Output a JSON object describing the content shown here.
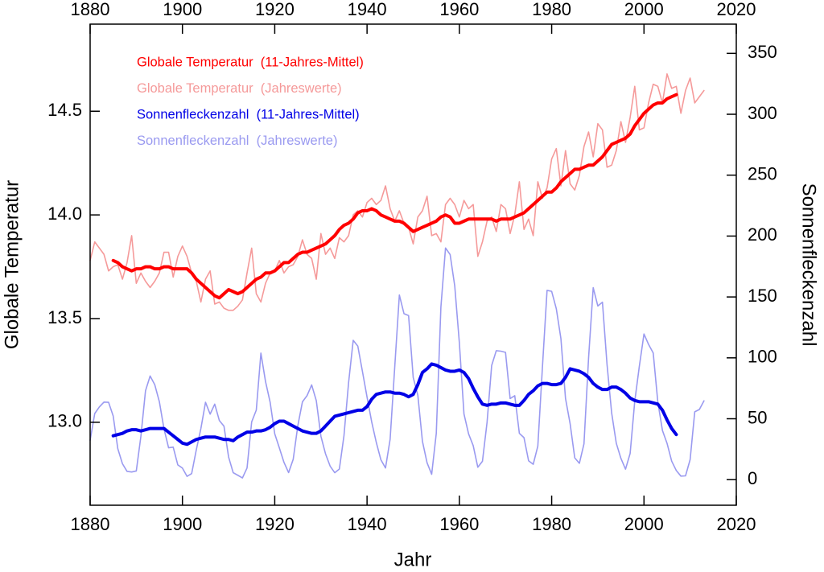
{
  "chart_data": {
    "type": "line",
    "xlabel": "Jahr",
    "ylabel": "Globale Temperatur",
    "y2label": "Sonnenfleckenzahl",
    "xlim": [
      1880,
      2020
    ],
    "xticks": [
      1880,
      1900,
      1920,
      1940,
      1960,
      1980,
      2000,
      2020
    ],
    "ylim": [
      12.6,
      14.92
    ],
    "yticks": [
      {
        "value": 13,
        "label": "13.0"
      },
      13.5,
      {
        "value": 14,
        "label": "14.0"
      },
      14.5
    ],
    "y2lim": [
      -21,
      374
    ],
    "y2ticks": [
      0,
      50,
      100,
      150,
      200,
      250,
      300,
      350
    ],
    "legend": "upper left",
    "x": [
      1880,
      1881,
      1882,
      1883,
      1884,
      1885,
      1886,
      1887,
      1888,
      1889,
      1890,
      1891,
      1892,
      1893,
      1894,
      1895,
      1896,
      1897,
      1898,
      1899,
      1900,
      1901,
      1902,
      1903,
      1904,
      1905,
      1906,
      1907,
      1908,
      1909,
      1910,
      1911,
      1912,
      1913,
      1914,
      1915,
      1916,
      1917,
      1918,
      1919,
      1920,
      1921,
      1922,
      1923,
      1924,
      1925,
      1926,
      1927,
      1928,
      1929,
      1930,
      1931,
      1932,
      1933,
      1934,
      1935,
      1936,
      1937,
      1938,
      1939,
      1940,
      1941,
      1942,
      1943,
      1944,
      1945,
      1946,
      1947,
      1948,
      1949,
      1950,
      1951,
      1952,
      1953,
      1954,
      1955,
      1956,
      1957,
      1958,
      1959,
      1960,
      1961,
      1962,
      1963,
      1964,
      1965,
      1966,
      1967,
      1968,
      1969,
      1970,
      1971,
      1972,
      1973,
      1974,
      1975,
      1976,
      1977,
      1978,
      1979,
      1980,
      1981,
      1982,
      1983,
      1984,
      1985,
      1986,
      1987,
      1988,
      1989,
      1990,
      1991,
      1992,
      1993,
      1994,
      1995,
      1996,
      1997,
      1998,
      1999,
      2000,
      2001,
      2002,
      2003,
      2004,
      2005,
      2006,
      2007,
      2008,
      2009,
      2010,
      2011,
      2012,
      2013
    ],
    "series": [
      {
        "name": "Globale Temperatur  (Jahreswerte)",
        "color": "#f59a9a",
        "axis": "y",
        "width": 1.6,
        "values": [
          13.78,
          13.87,
          13.84,
          13.81,
          13.73,
          13.75,
          13.76,
          13.69,
          13.77,
          13.9,
          13.67,
          13.72,
          13.68,
          13.65,
          13.68,
          13.72,
          13.82,
          13.82,
          13.7,
          13.8,
          13.85,
          13.8,
          13.72,
          13.68,
          13.58,
          13.69,
          13.73,
          13.57,
          13.58,
          13.55,
          13.54,
          13.54,
          13.56,
          13.59,
          13.72,
          13.84,
          13.62,
          13.58,
          13.67,
          13.72,
          13.73,
          13.78,
          13.72,
          13.75,
          13.76,
          13.8,
          13.88,
          13.81,
          13.79,
          13.69,
          13.91,
          13.81,
          13.84,
          13.79,
          13.89,
          13.87,
          13.9,
          14.0,
          14.02,
          13.99,
          14.06,
          14.08,
          14.05,
          14.07,
          14.14,
          14.03,
          13.97,
          14.02,
          13.96,
          13.94,
          13.86,
          13.99,
          14.02,
          14.09,
          13.9,
          13.91,
          13.87,
          14.05,
          14.08,
          14.05,
          13.99,
          14.07,
          14.03,
          14.05,
          13.8,
          13.87,
          13.97,
          13.99,
          13.92,
          14.05,
          14.03,
          13.91,
          14.0,
          14.16,
          13.93,
          13.98,
          13.9,
          14.16,
          14.08,
          14.13,
          14.27,
          14.32,
          14.14,
          14.31,
          14.15,
          14.12,
          14.19,
          14.33,
          14.4,
          14.28,
          14.44,
          14.41,
          14.23,
          14.24,
          14.31,
          14.45,
          14.35,
          14.47,
          14.62,
          14.41,
          14.42,
          14.54,
          14.63,
          14.62,
          14.54,
          14.68,
          14.61,
          14.62,
          14.49,
          14.6,
          14.66,
          14.54,
          14.57,
          14.6
        ]
      },
      {
        "name": "Sonnenfleckenzahl  (Jahreswerte)",
        "color": "#9a9af0",
        "axis": "y2",
        "width": 1.6,
        "values": [
          32.3,
          54.3,
          59.7,
          63.7,
          63.5,
          52.2,
          25.4,
          13.1,
          6.8,
          6.3,
          7.1,
          35.6,
          73.0,
          85.1,
          78.0,
          64.0,
          41.8,
          26.2,
          26.7,
          12.1,
          9.5,
          2.7,
          5.0,
          24.4,
          42.0,
          63.5,
          53.8,
          62.0,
          48.5,
          43.9,
          18.6,
          5.7,
          3.6,
          1.4,
          9.6,
          47.4,
          57.1,
          103.9,
          80.6,
          63.6,
          37.6,
          26.1,
          14.2,
          5.8,
          16.7,
          44.3,
          63.9,
          69.0,
          77.8,
          64.9,
          35.7,
          21.2,
          11.1,
          5.7,
          8.7,
          36.1,
          79.7,
          114.4,
          109.6,
          88.8,
          67.8,
          47.5,
          30.6,
          16.3,
          9.6,
          33.2,
          92.6,
          151.6,
          136.3,
          134.7,
          83.9,
          69.4,
          31.5,
          13.9,
          4.4,
          38.0,
          141.7,
          190.2,
          184.8,
          159.0,
          112.3,
          53.9,
          37.6,
          27.9,
          10.2,
          15.1,
          47.0,
          93.8,
          105.9,
          105.5,
          104.5,
          66.6,
          68.9,
          38.0,
          34.5,
          15.5,
          12.6,
          27.5,
          92.5,
          155.4,
          154.6,
          140.4,
          115.9,
          66.6,
          45.9,
          17.9,
          13.4,
          29.4,
          100.2,
          157.6,
          142.6,
          145.7,
          94.3,
          54.6,
          29.9,
          17.5,
          8.6,
          21.5,
          64.3,
          93.3,
          119.6,
          111.0,
          104.0,
          63.7,
          40.4,
          29.8,
          15.2,
          7.5,
          2.9,
          3.1,
          16.5,
          55.7,
          57.6,
          64.7
        ]
      },
      {
        "name": "Globale Temperatur  (11-Jahres-Mittel)",
        "color": "#ff0000",
        "axis": "y",
        "width": 4,
        "values": [
          null,
          null,
          null,
          null,
          null,
          13.78,
          13.77,
          13.75,
          13.74,
          13.73,
          13.74,
          13.74,
          13.75,
          13.75,
          13.74,
          13.74,
          13.75,
          13.75,
          13.74,
          13.74,
          13.74,
          13.74,
          13.72,
          13.69,
          13.67,
          13.65,
          13.63,
          13.61,
          13.6,
          13.62,
          13.64,
          13.63,
          13.62,
          13.63,
          13.65,
          13.67,
          13.69,
          13.7,
          13.72,
          13.72,
          13.73,
          13.75,
          13.77,
          13.77,
          13.79,
          13.81,
          13.82,
          13.82,
          13.83,
          13.84,
          13.85,
          13.86,
          13.88,
          13.9,
          13.93,
          13.95,
          13.96,
          13.98,
          14.01,
          14.02,
          14.02,
          14.03,
          14.02,
          14.0,
          13.99,
          13.98,
          13.97,
          13.97,
          13.96,
          13.94,
          13.92,
          13.93,
          13.94,
          13.95,
          13.96,
          13.97,
          13.99,
          14.0,
          13.99,
          13.96,
          13.96,
          13.97,
          13.98,
          13.98,
          13.98,
          13.98,
          13.98,
          13.98,
          13.97,
          13.98,
          13.98,
          13.98,
          13.99,
          14.0,
          14.01,
          14.03,
          14.05,
          14.07,
          14.09,
          14.11,
          14.11,
          14.13,
          14.16,
          14.18,
          14.2,
          14.22,
          14.22,
          14.23,
          14.24,
          14.24,
          14.26,
          14.28,
          14.31,
          14.34,
          14.35,
          14.36,
          14.37,
          14.39,
          14.43,
          14.46,
          14.49,
          14.51,
          14.53,
          14.54,
          14.54,
          14.56,
          14.57,
          14.58,
          null,
          null,
          null,
          null,
          null,
          null
        ]
      },
      {
        "name": "Sonnenfleckenzahl  (11-Jahres-Mittel)",
        "color": "#0000e6",
        "axis": "y2",
        "width": 4,
        "values": [
          null,
          null,
          null,
          null,
          null,
          36,
          37,
          38,
          40,
          41,
          41,
          40,
          41,
          42,
          42,
          42,
          42,
          39,
          36,
          33,
          30,
          29,
          31,
          33,
          34,
          35,
          35,
          35,
          34,
          33,
          33,
          32,
          35,
          37,
          39,
          39,
          40,
          40,
          41,
          43,
          46,
          48,
          48,
          46,
          44,
          42,
          40,
          39,
          38,
          38,
          40,
          44,
          48,
          52,
          53,
          54,
          55,
          56,
          57,
          57,
          60,
          66,
          70,
          71,
          72,
          72,
          71,
          71,
          70,
          68,
          70,
          78,
          88,
          91,
          95,
          94,
          92,
          90,
          89,
          89,
          90,
          88,
          83,
          75,
          68,
          62,
          61,
          62,
          62,
          63,
          63,
          62,
          61,
          61,
          65,
          70,
          73,
          77,
          79,
          79,
          78,
          78,
          79,
          84,
          91,
          90,
          89,
          87,
          84,
          79,
          76,
          74,
          74,
          76,
          76,
          74,
          71,
          67,
          65,
          64,
          64,
          64,
          63,
          62,
          57,
          49,
          42,
          37,
          null,
          null,
          null,
          null,
          null,
          null
        ]
      }
    ]
  }
}
